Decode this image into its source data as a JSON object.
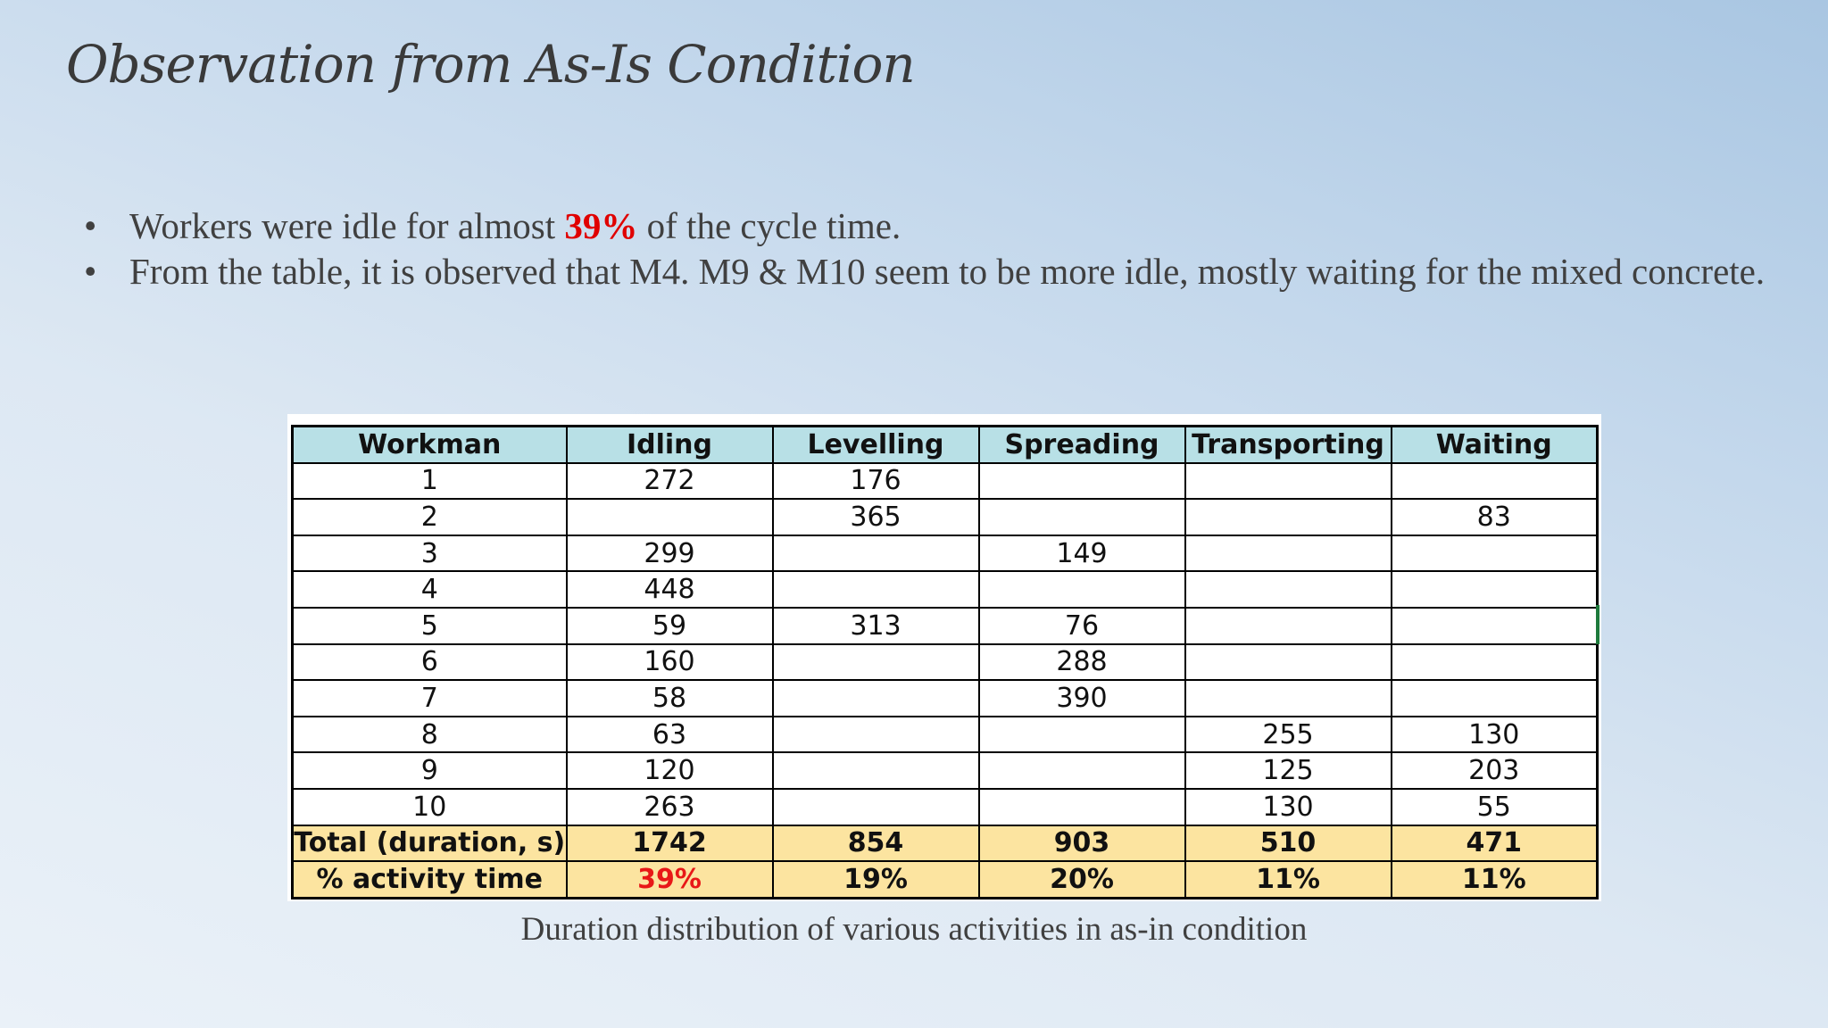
{
  "title": "Observation from As-Is Condition",
  "bullets": [
    {
      "before": "Workers were idle for almost ",
      "highlight": "39%",
      "after": " of the cycle time."
    },
    {
      "text": "From the table, it is observed that M4. M9 & M10 seem to be more idle, mostly waiting for the mixed concrete."
    }
  ],
  "colors": {
    "highlight": "#e00000",
    "header_fill": "#b8e0e6",
    "summary_fill": "#fce4a0"
  },
  "table": {
    "headers": [
      "Workman",
      "Idling",
      "Levelling",
      "Spreading",
      "Transporting",
      "Waiting"
    ],
    "rows": [
      [
        "1",
        "272",
        "176",
        "",
        "",
        ""
      ],
      [
        "2",
        "",
        "365",
        "",
        "",
        "83"
      ],
      [
        "3",
        "299",
        "",
        "149",
        "",
        ""
      ],
      [
        "4",
        "448",
        "",
        "",
        "",
        ""
      ],
      [
        "5",
        "59",
        "313",
        "76",
        "",
        ""
      ],
      [
        "6",
        "160",
        "",
        "288",
        "",
        ""
      ],
      [
        "7",
        "58",
        "",
        "390",
        "",
        ""
      ],
      [
        "8",
        "63",
        "",
        "",
        "255",
        "130"
      ],
      [
        "9",
        "120",
        "",
        "",
        "125",
        "203"
      ],
      [
        "10",
        "263",
        "",
        "",
        "130",
        "55"
      ]
    ],
    "total": [
      "Total (duration, s)",
      "1742",
      "854",
      "903",
      "510",
      "471"
    ],
    "percent": [
      "% activity time",
      "39%",
      "19%",
      "20%",
      "11%",
      "11%"
    ]
  },
  "caption": "Duration distribution of various activities in as-in condition"
}
